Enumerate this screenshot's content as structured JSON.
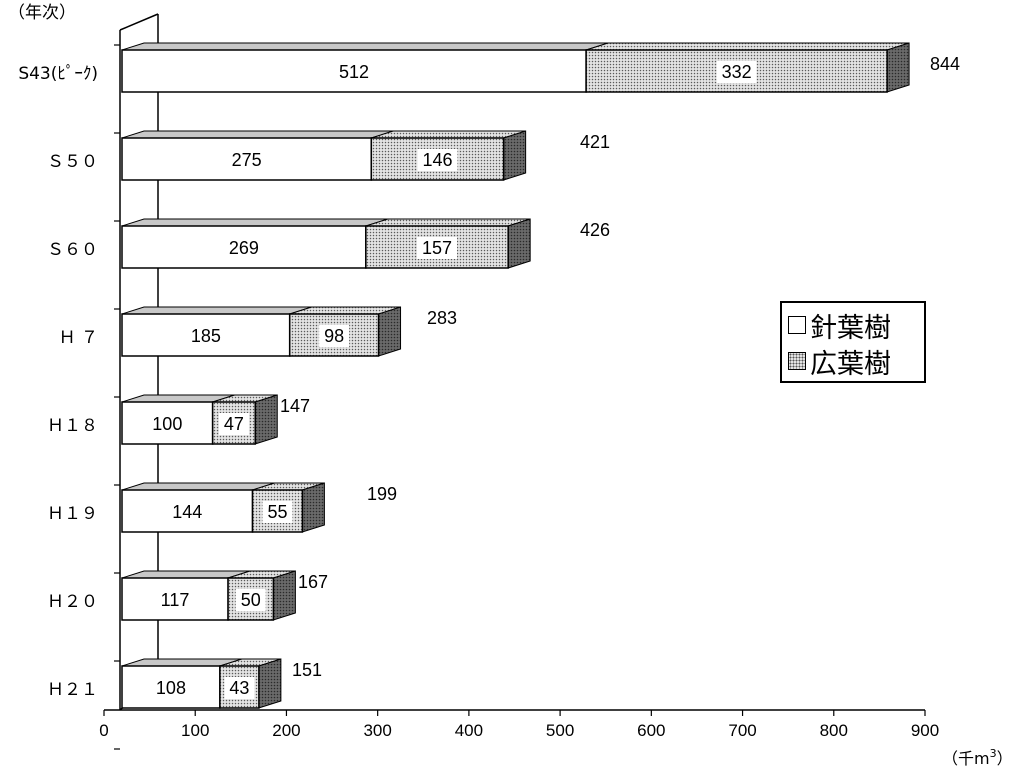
{
  "chart_data": {
    "type": "bar",
    "orientation": "horizontal",
    "stacked": true,
    "three_d": true,
    "categories": [
      "S43(ﾋﾟｰｸ)",
      "Ｓ５０",
      "Ｓ６０",
      "Ｈ ７",
      "Ｈ１８",
      "Ｈ１９",
      "Ｈ２０",
      "Ｈ２１"
    ],
    "category_axis_label": "（年次）",
    "value_axis_label": "（千m",
    "value_axis_label_superscript": "3",
    "value_axis_label_close": "）",
    "xlim": [
      0,
      900
    ],
    "ticks": [
      0,
      100,
      200,
      300,
      400,
      500,
      600,
      700,
      800,
      900
    ],
    "grid": false,
    "legend_position": "right",
    "series": [
      {
        "name": "針葉樹",
        "values": [
          512,
          275,
          269,
          185,
          100,
          144,
          117,
          108
        ],
        "color": "#ffffff",
        "pattern": "none"
      },
      {
        "name": "広葉樹",
        "values": [
          332,
          146,
          157,
          98,
          47,
          55,
          50,
          43
        ],
        "color": "#d9d9d9",
        "pattern": "dotted"
      }
    ],
    "totals": [
      844,
      421,
      426,
      283,
      147,
      199,
      167,
      151
    ]
  },
  "legend": {
    "items": [
      {
        "marker": "□",
        "label": "針葉樹"
      },
      {
        "marker": "▧",
        "label": "広葉樹"
      }
    ]
  }
}
